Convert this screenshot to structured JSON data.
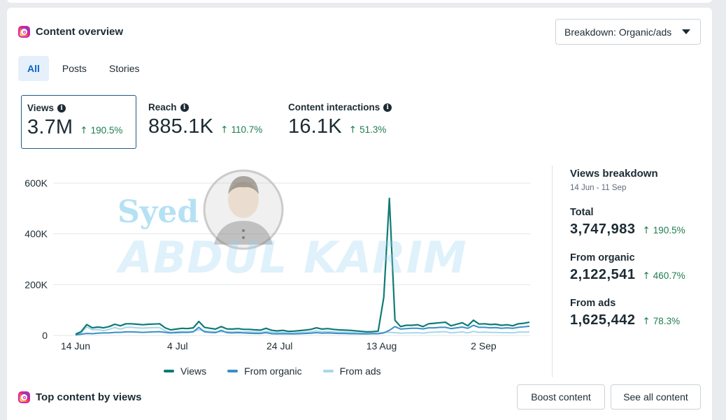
{
  "header": {
    "title": "Content overview",
    "breakdown_dropdown": "Breakdown: Organic/ads"
  },
  "tabs": [
    {
      "label": "All",
      "active": true
    },
    {
      "label": "Posts",
      "active": false
    },
    {
      "label": "Stories",
      "active": false
    }
  ],
  "metrics": [
    {
      "label": "Views",
      "value": "3.7M",
      "change": "190.5%",
      "selected": true
    },
    {
      "label": "Reach",
      "value": "885.1K",
      "change": "110.7%",
      "selected": false
    },
    {
      "label": "Content interactions",
      "value": "16.1K",
      "change": "51.3%",
      "selected": false
    }
  ],
  "chart_data": {
    "type": "line",
    "y_ticks": [
      "600K",
      "400K",
      "200K",
      "0"
    ],
    "x_ticks": [
      "14 Jun",
      "4 Jul",
      "24 Jul",
      "13 Aug",
      "2 Sep"
    ],
    "ylim": [
      0,
      600000
    ],
    "x_start": "14 Jun",
    "x_end": "11 Sep",
    "series": [
      {
        "name": "Views",
        "color": "#0f7b74",
        "values": [
          5000,
          15000,
          43000,
          30000,
          33000,
          30000,
          35000,
          44000,
          38000,
          46000,
          46000,
          44000,
          42000,
          44000,
          45000,
          46000,
          30000,
          22000,
          25000,
          28000,
          27000,
          30000,
          55000,
          32000,
          28000,
          25000,
          35000,
          26000,
          25000,
          27000,
          24000,
          24000,
          22000,
          21000,
          28000,
          20000,
          18000,
          20000,
          16000,
          17000,
          19000,
          21000,
          24000,
          30000,
          25000,
          27000,
          24000,
          22000,
          21000,
          20000,
          18000,
          16000,
          14000,
          15000,
          17000,
          150000,
          540000,
          60000,
          35000,
          40000,
          40000,
          42000,
          35000,
          46000,
          48000,
          50000,
          52000,
          38000,
          44000,
          50000,
          38000,
          60000,
          45000,
          46000,
          43000,
          44000,
          40000,
          42000,
          38000,
          46000,
          48000,
          52000
        ]
      },
      {
        "name": "From organic",
        "color": "#3b8fc4",
        "values": [
          2000,
          5000,
          8000,
          7000,
          9000,
          10000,
          10000,
          12000,
          12000,
          14000,
          14000,
          13000,
          12000,
          13000,
          14000,
          15000,
          12000,
          10000,
          11000,
          12000,
          12000,
          14000,
          32000,
          14000,
          12000,
          11000,
          20000,
          11000,
          10000,
          11000,
          10000,
          9000,
          8000,
          8000,
          11000,
          7000,
          6000,
          7000,
          6000,
          6000,
          7000,
          8000,
          9000,
          11000,
          9000,
          10000,
          9000,
          8000,
          8000,
          7000,
          7000,
          6000,
          6000,
          7000,
          7000,
          10000,
          20000,
          35000,
          25000,
          27000,
          28000,
          28000,
          26000,
          30000,
          30000,
          32000,
          32000,
          27000,
          30000,
          33000,
          28000,
          40000,
          32000,
          32000,
          30000,
          31000,
          28000,
          30000,
          28000,
          32000,
          34000,
          36000
        ]
      },
      {
        "name": "From ads",
        "color": "#a8d5ec",
        "values": [
          3000,
          9000,
          34000,
          22000,
          23000,
          19000,
          24000,
          31000,
          25000,
          32000,
          32000,
          30000,
          29000,
          30000,
          31000,
          31000,
          18000,
          12000,
          14000,
          16000,
          15000,
          16000,
          22000,
          18000,
          16000,
          14000,
          14000,
          15000,
          14000,
          15000,
          13000,
          14000,
          13000,
          12000,
          16000,
          12000,
          11000,
          12000,
          10000,
          10000,
          11000,
          12000,
          14000,
          18000,
          15000,
          16000,
          14000,
          13000,
          12000,
          12000,
          10000,
          9000,
          8000,
          8000,
          9000,
          12000,
          12000,
          11000,
          9000,
          10000,
          10000,
          11000,
          9000,
          12000,
          13000,
          14000,
          15000,
          10000,
          12000,
          14000,
          10000,
          16000,
          12000,
          13000,
          12000,
          12000,
          11000,
          11000,
          10000,
          13000,
          13000,
          14000
        ]
      }
    ],
    "grid": true,
    "legend_position": "bottom"
  },
  "breakdown": {
    "title": "Views breakdown",
    "range": "14 Jun - 11 Sep",
    "items": [
      {
        "label": "Total",
        "value": "3,747,983",
        "change": "190.5%"
      },
      {
        "label": "From organic",
        "value": "2,122,541",
        "change": "460.7%"
      },
      {
        "label": "From ads",
        "value": "1,625,442",
        "change": "78.3%"
      }
    ]
  },
  "top_content": {
    "title": "Top content by views",
    "boost_label": "Boost content",
    "see_all_label": "See all content"
  },
  "watermark": {
    "line1": "Syed",
    "line2": "ABDUL KARIM"
  },
  "colors": {
    "accent": "#0a66c2",
    "positive": "#1e7d4f"
  }
}
